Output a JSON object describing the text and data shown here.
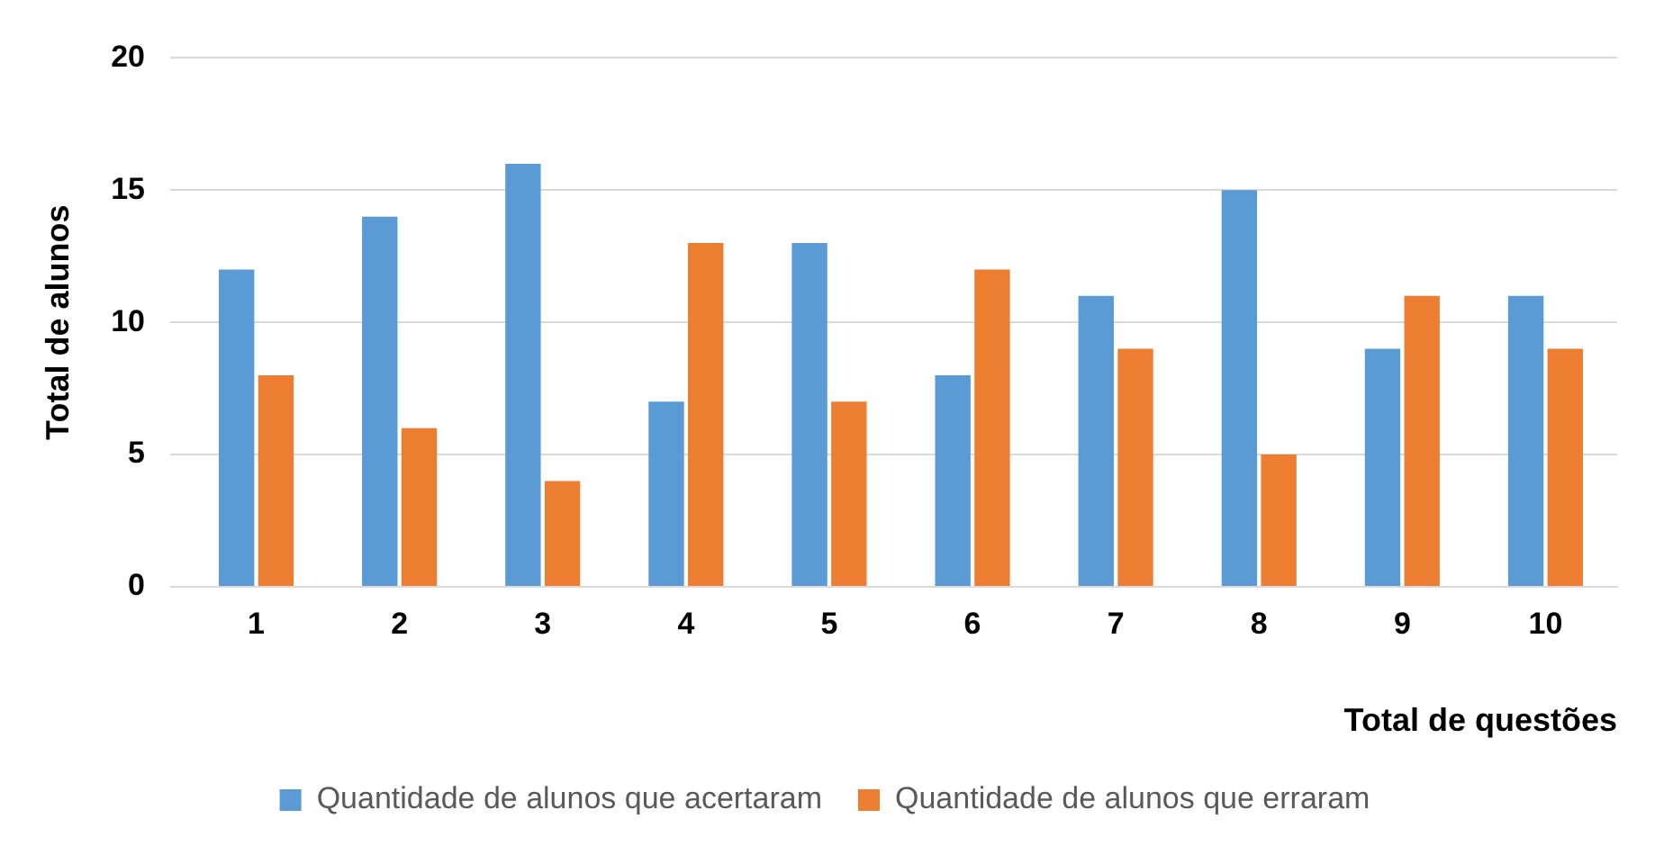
{
  "chart_data": {
    "type": "bar",
    "xlabel": "Total de questões",
    "ylabel": "Total de alunos",
    "categories": [
      "1",
      "2",
      "3",
      "4",
      "5",
      "6",
      "7",
      "8",
      "9",
      "10"
    ],
    "series": [
      {
        "name": "Quantidade de alunos que acertaram",
        "color": "#5b9bd5",
        "values": [
          12,
          14,
          16,
          7,
          13,
          8,
          11,
          15,
          9,
          11
        ]
      },
      {
        "name": "Quantidade de alunos que erraram",
        "color": "#ed7d31",
        "values": [
          8,
          6,
          4,
          13,
          7,
          12,
          9,
          5,
          11,
          9
        ]
      }
    ],
    "ylim": [
      0,
      20
    ],
    "yticks": [
      0,
      5,
      10,
      15,
      20
    ],
    "grid": "y",
    "legend": "bottom"
  }
}
